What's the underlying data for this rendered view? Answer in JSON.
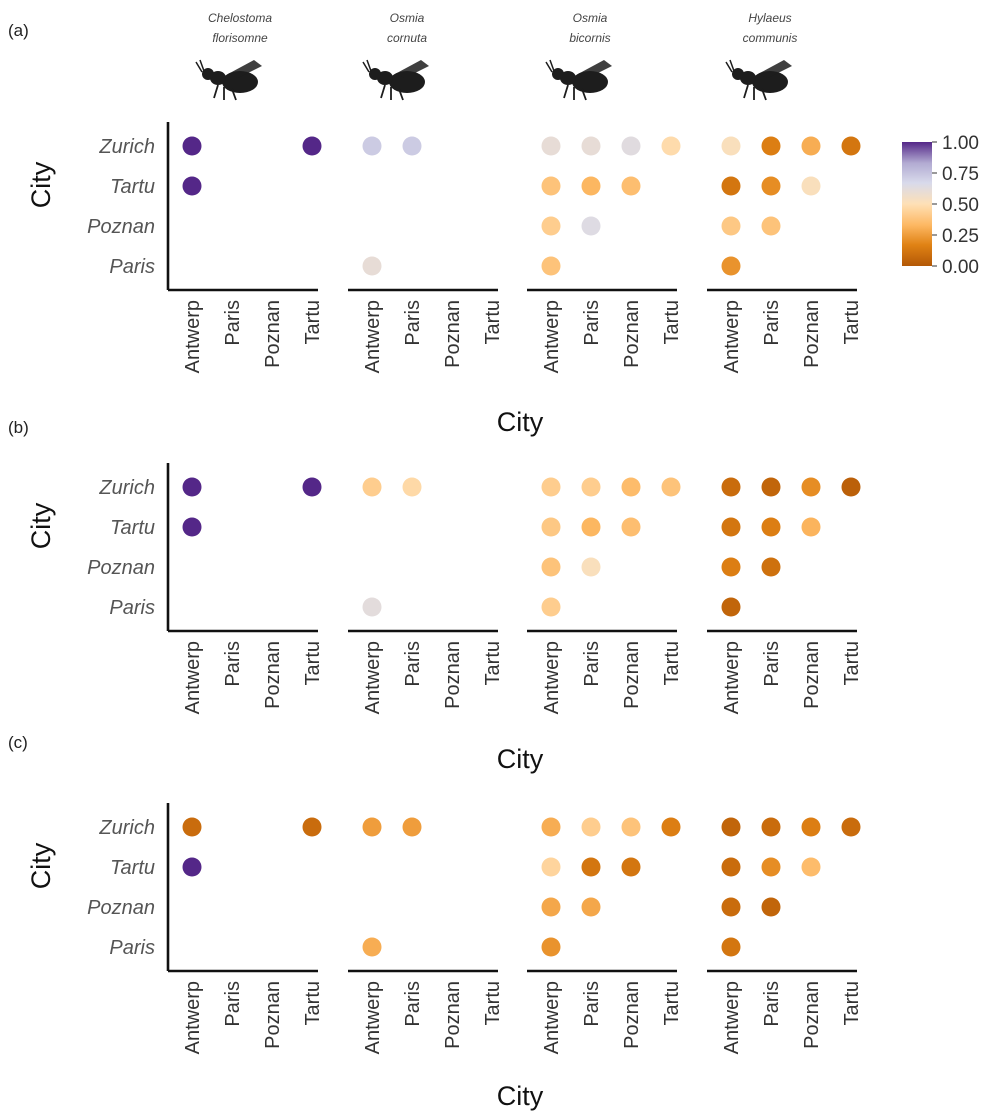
{
  "colors": {
    "scale": [
      "#b35806",
      "#e08214",
      "#fdb863",
      "#fee0b6",
      "#d8daeb",
      "#b2abd2",
      "#542788"
    ],
    "axis": "#111111"
  },
  "chart_data": {
    "type": "scatter",
    "panel_letters": [
      "(a)",
      "(b)",
      "(c)"
    ],
    "species": [
      {
        "line1": "Chelostoma",
        "line2": "florisomne"
      },
      {
        "line1": "Osmia",
        "line2": "cornuta"
      },
      {
        "line1": "Osmia",
        "line2": "bicornis"
      },
      {
        "line1": "Hylaeus",
        "line2": "communis"
      }
    ],
    "y_categories": [
      "Zurich",
      "Tartu",
      "Poznan",
      "Paris"
    ],
    "x_categories": [
      "Antwerp",
      "Paris",
      "Poznan",
      "Tartu"
    ],
    "xlabel": "City",
    "ylabel": "City",
    "colorbar": {
      "ticks": [
        "1.00",
        "0.75",
        "0.50",
        "0.25",
        "0.00"
      ],
      "range": [
        0,
        1
      ]
    },
    "panels": [
      {
        "letter": "(a)",
        "facets": [
          {
            "points": [
              {
                "x": "Antwerp",
                "y": "Zurich",
                "value": 1.0
              },
              {
                "x": "Tartu",
                "y": "Zurich",
                "value": 1.0
              },
              {
                "x": "Antwerp",
                "y": "Tartu",
                "value": 1.0
              }
            ]
          },
          {
            "points": [
              {
                "x": "Antwerp",
                "y": "Zurich",
                "value": 0.72
              },
              {
                "x": "Paris",
                "y": "Zurich",
                "value": 0.72
              },
              {
                "x": "Antwerp",
                "y": "Paris",
                "value": 0.6
              }
            ]
          },
          {
            "points": [
              {
                "x": "Antwerp",
                "y": "Zurich",
                "value": 0.6
              },
              {
                "x": "Paris",
                "y": "Zurich",
                "value": 0.6
              },
              {
                "x": "Poznan",
                "y": "Zurich",
                "value": 0.63
              },
              {
                "x": "Tartu",
                "y": "Zurich",
                "value": 0.48
              },
              {
                "x": "Antwerp",
                "y": "Tartu",
                "value": 0.38
              },
              {
                "x": "Paris",
                "y": "Tartu",
                "value": 0.33
              },
              {
                "x": "Poznan",
                "y": "Tartu",
                "value": 0.36
              },
              {
                "x": "Antwerp",
                "y": "Poznan",
                "value": 0.42
              },
              {
                "x": "Paris",
                "y": "Poznan",
                "value": 0.64
              },
              {
                "x": "Antwerp",
                "y": "Paris",
                "value": 0.38
              }
            ]
          },
          {
            "points": [
              {
                "x": "Antwerp",
                "y": "Zurich",
                "value": 0.52
              },
              {
                "x": "Paris",
                "y": "Zurich",
                "value": 0.15
              },
              {
                "x": "Poznan",
                "y": "Zurich",
                "value": 0.3
              },
              {
                "x": "Tartu",
                "y": "Zurich",
                "value": 0.12
              },
              {
                "x": "Antwerp",
                "y": "Tartu",
                "value": 0.12
              },
              {
                "x": "Paris",
                "y": "Tartu",
                "value": 0.2
              },
              {
                "x": "Poznan",
                "y": "Tartu",
                "value": 0.52
              },
              {
                "x": "Antwerp",
                "y": "Poznan",
                "value": 0.4
              },
              {
                "x": "Paris",
                "y": "Poznan",
                "value": 0.38
              },
              {
                "x": "Antwerp",
                "y": "Paris",
                "value": 0.22
              }
            ]
          }
        ]
      },
      {
        "letter": "(b)",
        "facets": [
          {
            "points": [
              {
                "x": "Antwerp",
                "y": "Zurich",
                "value": 1.0
              },
              {
                "x": "Tartu",
                "y": "Zurich",
                "value": 1.0
              },
              {
                "x": "Antwerp",
                "y": "Tartu",
                "value": 1.0
              }
            ]
          },
          {
            "points": [
              {
                "x": "Antwerp",
                "y": "Zurich",
                "value": 0.42
              },
              {
                "x": "Paris",
                "y": "Zurich",
                "value": 0.47
              },
              {
                "x": "Antwerp",
                "y": "Paris",
                "value": 0.62
              }
            ]
          },
          {
            "points": [
              {
                "x": "Antwerp",
                "y": "Zurich",
                "value": 0.42
              },
              {
                "x": "Paris",
                "y": "Zurich",
                "value": 0.42
              },
              {
                "x": "Poznan",
                "y": "Zurich",
                "value": 0.35
              },
              {
                "x": "Tartu",
                "y": "Zurich",
                "value": 0.38
              },
              {
                "x": "Antwerp",
                "y": "Tartu",
                "value": 0.4
              },
              {
                "x": "Paris",
                "y": "Tartu",
                "value": 0.33
              },
              {
                "x": "Poznan",
                "y": "Tartu",
                "value": 0.36
              },
              {
                "x": "Antwerp",
                "y": "Poznan",
                "value": 0.38
              },
              {
                "x": "Paris",
                "y": "Poznan",
                "value": 0.52
              },
              {
                "x": "Antwerp",
                "y": "Paris",
                "value": 0.42
              }
            ]
          },
          {
            "points": [
              {
                "x": "Antwerp",
                "y": "Zurich",
                "value": 0.08
              },
              {
                "x": "Paris",
                "y": "Zurich",
                "value": 0.05
              },
              {
                "x": "Poznan",
                "y": "Zurich",
                "value": 0.2
              },
              {
                "x": "Tartu",
                "y": "Zurich",
                "value": 0.03
              },
              {
                "x": "Antwerp",
                "y": "Tartu",
                "value": 0.12
              },
              {
                "x": "Paris",
                "y": "Tartu",
                "value": 0.15
              },
              {
                "x": "Poznan",
                "y": "Tartu",
                "value": 0.32
              },
              {
                "x": "Antwerp",
                "y": "Poznan",
                "value": 0.15
              },
              {
                "x": "Paris",
                "y": "Poznan",
                "value": 0.1
              },
              {
                "x": "Antwerp",
                "y": "Paris",
                "value": 0.05
              }
            ]
          }
        ]
      },
      {
        "letter": "(c)",
        "facets": [
          {
            "points": [
              {
                "x": "Antwerp",
                "y": "Zurich",
                "value": 0.08
              },
              {
                "x": "Tartu",
                "y": "Zurich",
                "value": 0.08
              },
              {
                "x": "Antwerp",
                "y": "Tartu",
                "value": 1.0
              }
            ]
          },
          {
            "points": [
              {
                "x": "Antwerp",
                "y": "Zurich",
                "value": 0.25
              },
              {
                "x": "Paris",
                "y": "Zurich",
                "value": 0.25
              },
              {
                "x": "Antwerp",
                "y": "Paris",
                "value": 0.3
              }
            ]
          },
          {
            "points": [
              {
                "x": "Antwerp",
                "y": "Zurich",
                "value": 0.3
              },
              {
                "x": "Paris",
                "y": "Zurich",
                "value": 0.42
              },
              {
                "x": "Poznan",
                "y": "Zurich",
                "value": 0.38
              },
              {
                "x": "Tartu",
                "y": "Zurich",
                "value": 0.15
              },
              {
                "x": "Antwerp",
                "y": "Tartu",
                "value": 0.45
              },
              {
                "x": "Paris",
                "y": "Tartu",
                "value": 0.12
              },
              {
                "x": "Poznan",
                "y": "Tartu",
                "value": 0.12
              },
              {
                "x": "Antwerp",
                "y": "Poznan",
                "value": 0.28
              },
              {
                "x": "Paris",
                "y": "Poznan",
                "value": 0.28
              },
              {
                "x": "Antwerp",
                "y": "Paris",
                "value": 0.22
              }
            ]
          },
          {
            "points": [
              {
                "x": "Antwerp",
                "y": "Zurich",
                "value": 0.05
              },
              {
                "x": "Paris",
                "y": "Zurich",
                "value": 0.08
              },
              {
                "x": "Poznan",
                "y": "Zurich",
                "value": 0.15
              },
              {
                "x": "Tartu",
                "y": "Zurich",
                "value": 0.08
              },
              {
                "x": "Antwerp",
                "y": "Tartu",
                "value": 0.08
              },
              {
                "x": "Paris",
                "y": "Tartu",
                "value": 0.2
              },
              {
                "x": "Poznan",
                "y": "Tartu",
                "value": 0.35
              },
              {
                "x": "Antwerp",
                "y": "Poznan",
                "value": 0.08
              },
              {
                "x": "Paris",
                "y": "Poznan",
                "value": 0.05
              },
              {
                "x": "Antwerp",
                "y": "Paris",
                "value": 0.12
              }
            ]
          }
        ]
      }
    ]
  }
}
